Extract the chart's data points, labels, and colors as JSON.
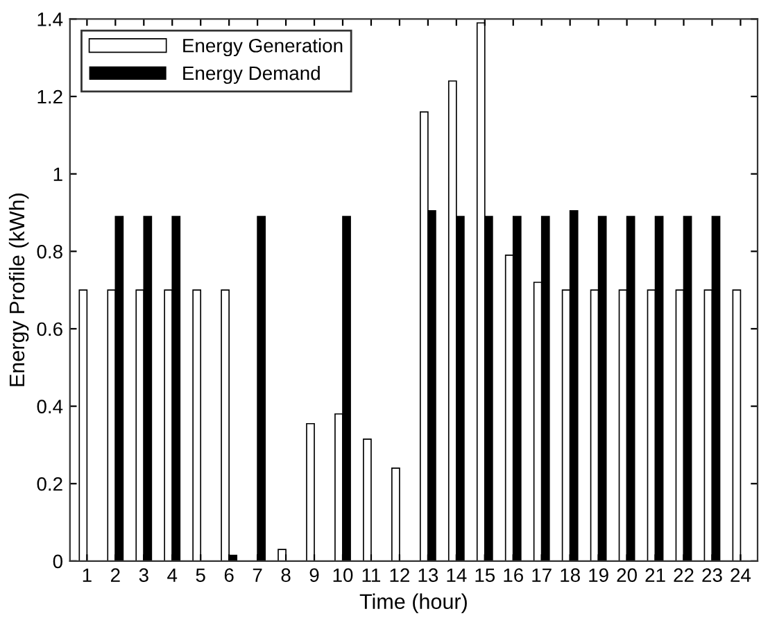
{
  "chart_data": {
    "type": "bar",
    "xlabel": "Time (hour)",
    "ylabel": "Energy Profile (kWh)",
    "categories": [
      "1",
      "2",
      "3",
      "4",
      "5",
      "6",
      "7",
      "8",
      "9",
      "10",
      "11",
      "12",
      "13",
      "14",
      "15",
      "16",
      "17",
      "18",
      "19",
      "20",
      "21",
      "22",
      "23",
      "24"
    ],
    "series": [
      {
        "name": "Energy Generation",
        "color": "#ffffff",
        "values": [
          0.7,
          0.7,
          0.7,
          0.7,
          0.7,
          0.7,
          0,
          0.03,
          0.355,
          0.38,
          0.315,
          0.24,
          1.16,
          1.24,
          1.39,
          0.79,
          0.72,
          0.7,
          0.7,
          0.7,
          0.7,
          0.7,
          0.7,
          0.7
        ]
      },
      {
        "name": "Energy Demand",
        "color": "#000000",
        "values": [
          0,
          0.89,
          0.89,
          0.89,
          0,
          0.015,
          0.89,
          0,
          0,
          0.89,
          0,
          0,
          0.905,
          0.89,
          0.89,
          0.89,
          0.89,
          0.905,
          0.89,
          0.89,
          0.89,
          0.89,
          0.89,
          0
        ]
      }
    ],
    "ylim": [
      0,
      1.4
    ],
    "yticks": [
      0,
      0.2,
      0.4,
      0.6,
      0.8,
      1,
      1.2,
      1.4
    ],
    "grid": false,
    "legend": "top left"
  }
}
